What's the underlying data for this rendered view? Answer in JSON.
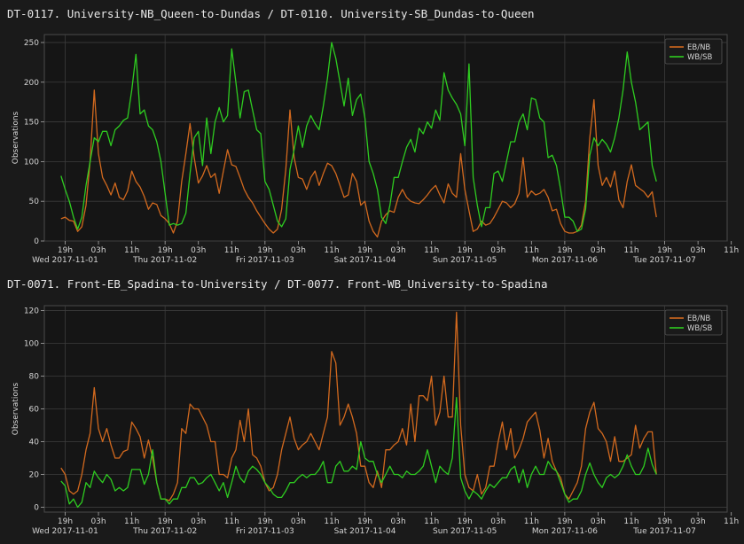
{
  "colors": {
    "background": "#1a1a1a",
    "plot_background": "#151515",
    "grid": "#3c3c3c",
    "text": "#d4d4d4",
    "eb_nb": "#d2691e",
    "wb_sb": "#2ecc20"
  },
  "chart_data": [
    {
      "type": "line",
      "title": "DT-0117. University-NB_Queen-to-Dundas / DT-0110. University-SB_Dundas-to-Queen",
      "ylabel": "Observations",
      "xlabel": "",
      "ylim": [
        0,
        260
      ],
      "xlim": [
        -10,
        154
      ],
      "y_ticks": [
        0,
        50,
        100,
        150,
        200,
        250
      ],
      "x_ticks": [
        -5,
        3,
        11,
        19,
        27,
        35,
        43,
        51,
        59,
        67,
        75,
        83,
        91,
        99,
        107,
        115,
        123,
        131,
        139,
        147,
        155
      ],
      "x_tick_labels": [
        "19h",
        "03h",
        "11h",
        "19h",
        "03h",
        "11h",
        "19h",
        "03h",
        "11h",
        "19h",
        "03h",
        "11h",
        "19h",
        "03h",
        "11h",
        "19h",
        "03h",
        "11h",
        "19h",
        "03h",
        "11h"
      ],
      "day_labels": [
        {
          "x": -5,
          "label": "Wed 2017-11-01"
        },
        {
          "x": 19,
          "label": "Thu 2017-11-02"
        },
        {
          "x": 43,
          "label": "Fri 2017-11-03"
        },
        {
          "x": 67,
          "label": "Sat 2017-11-04"
        },
        {
          "x": 91,
          "label": "Sun 2017-11-05"
        },
        {
          "x": 115,
          "label": "Mon 2017-11-06"
        },
        {
          "x": 139,
          "label": "Tue 2017-11-07"
        }
      ],
      "grid": true,
      "legend_position": "top-right",
      "x_hours_start": -6,
      "x_hours_step": 1,
      "series": [
        {
          "name": "EB/NB",
          "color": "#d2691e",
          "values": [
            28,
            30,
            26,
            25,
            12,
            18,
            45,
            100,
            190,
            110,
            80,
            70,
            58,
            73,
            55,
            52,
            63,
            88,
            75,
            68,
            56,
            40,
            48,
            46,
            32,
            28,
            22,
            10,
            25,
            75,
            110,
            148,
            105,
            73,
            82,
            95,
            80,
            85,
            60,
            88,
            115,
            96,
            94,
            80,
            65,
            55,
            48,
            38,
            30,
            22,
            15,
            10,
            15,
            40,
            90,
            165,
            105,
            80,
            78,
            65,
            80,
            88,
            70,
            85,
            98,
            95,
            85,
            70,
            55,
            58,
            85,
            75,
            45,
            50,
            25,
            12,
            5,
            25,
            33,
            38,
            36,
            55,
            65,
            55,
            50,
            48,
            47,
            52,
            58,
            65,
            70,
            58,
            48,
            72,
            60,
            55,
            110,
            65,
            38,
            12,
            15,
            25,
            20,
            22,
            30,
            40,
            50,
            48,
            42,
            47,
            60,
            105,
            55,
            63,
            58,
            60,
            65,
            55,
            38,
            40,
            22,
            12,
            10,
            10,
            12,
            20,
            50,
            130,
            178,
            95,
            70,
            80,
            68,
            88,
            52,
            42,
            75,
            96,
            70,
            66,
            62,
            55,
            62,
            30
          ]
        },
        {
          "name": "WB/SB",
          "color": "#2ecc20",
          "values": [
            82,
            65,
            50,
            30,
            15,
            30,
            70,
            100,
            130,
            125,
            138,
            138,
            120,
            140,
            145,
            152,
            155,
            190,
            235,
            160,
            165,
            145,
            140,
            125,
            100,
            60,
            20,
            22,
            20,
            22,
            35,
            85,
            130,
            138,
            95,
            155,
            110,
            150,
            168,
            150,
            158,
            242,
            200,
            155,
            188,
            190,
            165,
            140,
            135,
            75,
            65,
            45,
            25,
            18,
            28,
            90,
            115,
            145,
            118,
            145,
            158,
            148,
            140,
            170,
            205,
            250,
            230,
            200,
            170,
            205,
            158,
            178,
            185,
            155,
            100,
            85,
            65,
            30,
            22,
            45,
            80,
            80,
            100,
            118,
            128,
            112,
            142,
            135,
            150,
            142,
            165,
            152,
            212,
            190,
            180,
            172,
            160,
            120,
            223,
            80,
            45,
            18,
            42,
            42,
            85,
            88,
            75,
            100,
            125,
            125,
            150,
            160,
            140,
            180,
            178,
            155,
            150,
            105,
            108,
            95,
            65,
            30,
            30,
            25,
            12,
            15,
            40,
            108,
            130,
            120,
            128,
            122,
            112,
            130,
            155,
            190,
            238,
            200,
            175,
            140,
            145,
            150,
            95,
            75
          ]
        }
      ]
    },
    {
      "type": "line",
      "title": "DT-0071. Front-EB_Spadina-to-University / DT-0077. Front-WB_University-to-Spadina",
      "ylabel": "Observations",
      "xlabel": "",
      "ylim": [
        -3,
        123
      ],
      "xlim": [
        -10,
        154
      ],
      "y_ticks": [
        0,
        20,
        40,
        60,
        80,
        100,
        120
      ],
      "x_ticks": [
        -5,
        3,
        11,
        19,
        27,
        35,
        43,
        51,
        59,
        67,
        75,
        83,
        91,
        99,
        107,
        115,
        123,
        131,
        139,
        147,
        155
      ],
      "x_tick_labels": [
        "19h",
        "03h",
        "11h",
        "19h",
        "03h",
        "11h",
        "19h",
        "03h",
        "11h",
        "19h",
        "03h",
        "11h",
        "19h",
        "03h",
        "11h",
        "19h",
        "03h",
        "11h",
        "19h",
        "03h",
        "11h"
      ],
      "day_labels": [
        {
          "x": -5,
          "label": "Wed 2017-11-01"
        },
        {
          "x": 19,
          "label": "Thu 2017-11-02"
        },
        {
          "x": 43,
          "label": "Fri 2017-11-03"
        },
        {
          "x": 67,
          "label": "Sat 2017-11-04"
        },
        {
          "x": 91,
          "label": "Sun 2017-11-05"
        },
        {
          "x": 115,
          "label": "Mon 2017-11-06"
        },
        {
          "x": 139,
          "label": "Tue 2017-11-07"
        }
      ],
      "grid": true,
      "legend_position": "top-right",
      "x_hours_start": -6,
      "x_hours_step": 1,
      "series": [
        {
          "name": "EB/NB",
          "color": "#d2691e",
          "values": [
            24,
            20,
            10,
            8,
            10,
            20,
            35,
            45,
            73,
            48,
            40,
            48,
            38,
            30,
            30,
            34,
            35,
            52,
            48,
            43,
            30,
            41,
            30,
            15,
            5,
            5,
            4,
            8,
            15,
            48,
            45,
            63,
            60,
            60,
            55,
            50,
            40,
            40,
            20,
            20,
            18,
            30,
            35,
            53,
            40,
            60,
            32,
            30,
            25,
            15,
            10,
            12,
            20,
            35,
            45,
            55,
            42,
            35,
            38,
            40,
            45,
            40,
            35,
            45,
            55,
            95,
            88,
            50,
            55,
            63,
            55,
            45,
            25,
            25,
            15,
            12,
            22,
            12,
            35,
            35,
            38,
            40,
            48,
            38,
            63,
            40,
            68,
            68,
            65,
            80,
            50,
            58,
            80,
            55,
            55,
            119,
            50,
            20,
            12,
            10,
            20,
            8,
            12,
            25,
            25,
            40,
            52,
            35,
            48,
            30,
            35,
            42,
            52,
            55,
            58,
            47,
            30,
            42,
            28,
            22,
            18,
            8,
            5,
            10,
            15,
            25,
            48,
            58,
            64,
            48,
            45,
            40,
            28,
            43,
            28,
            28,
            30,
            32,
            50,
            36,
            42,
            46,
            46,
            20
          ]
        },
        {
          "name": "WB/SB",
          "color": "#2ecc20",
          "values": [
            16,
            13,
            2,
            5,
            0,
            3,
            15,
            12,
            22,
            18,
            15,
            20,
            17,
            10,
            12,
            10,
            12,
            23,
            23,
            23,
            14,
            20,
            35,
            15,
            5,
            5,
            2,
            5,
            5,
            12,
            12,
            18,
            18,
            14,
            15,
            18,
            20,
            15,
            10,
            15,
            6,
            15,
            25,
            18,
            15,
            22,
            25,
            23,
            20,
            15,
            12,
            8,
            6,
            6,
            10,
            15,
            15,
            18,
            20,
            18,
            20,
            20,
            23,
            28,
            15,
            15,
            25,
            28,
            22,
            22,
            25,
            23,
            40,
            30,
            28,
            28,
            20,
            15,
            20,
            25,
            20,
            20,
            18,
            22,
            20,
            20,
            22,
            25,
            35,
            25,
            15,
            25,
            22,
            20,
            30,
            67,
            18,
            10,
            5,
            10,
            8,
            5,
            10,
            14,
            12,
            15,
            18,
            18,
            23,
            25,
            15,
            23,
            12,
            20,
            25,
            20,
            20,
            28,
            24,
            22,
            15,
            8,
            3,
            5,
            5,
            10,
            20,
            27,
            20,
            15,
            12,
            18,
            20,
            18,
            20,
            25,
            32,
            25,
            20,
            20,
            25,
            36,
            26,
            20
          ]
        }
      ]
    }
  ]
}
